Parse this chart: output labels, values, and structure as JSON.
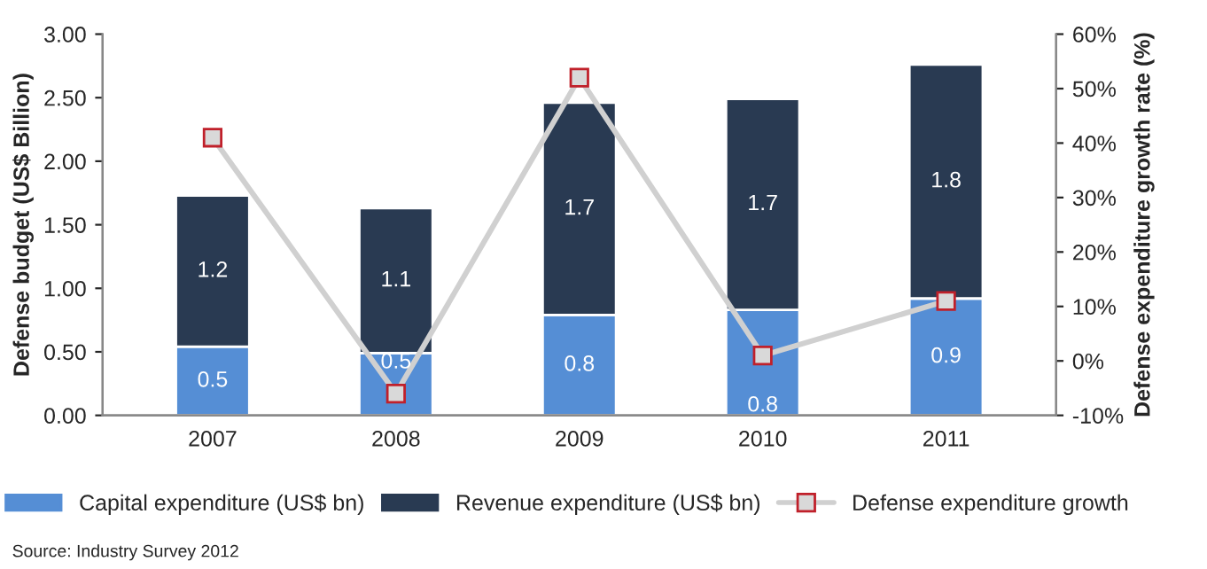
{
  "chart_data": {
    "type": "bar",
    "stacked": true,
    "categories": [
      "2007",
      "2008",
      "2009",
      "2010",
      "2011"
    ],
    "ylabel": "Defense budget (US$ Billion)",
    "y2label": "Defense expenditure growth rate (%)",
    "ylim": [
      0,
      3
    ],
    "yticks": [
      {
        "value": 0,
        "label": "0.00"
      },
      {
        "value": 0.5,
        "label": "0.50"
      },
      {
        "value": 1,
        "label": "1.00"
      },
      {
        "value": 1.5,
        "label": "1.50"
      },
      {
        "value": 2,
        "label": "2.00"
      },
      {
        "value": 2.5,
        "label": "2.50"
      },
      {
        "value": 3,
        "label": "3.00"
      }
    ],
    "y2lim": [
      -10,
      60
    ],
    "y2ticks": [
      {
        "value": -10,
        "label": "-10%"
      },
      {
        "value": 0,
        "label": "0%"
      },
      {
        "value": 10,
        "label": "10%"
      },
      {
        "value": 20,
        "label": "20%"
      },
      {
        "value": 30,
        "label": "30%"
      },
      {
        "value": 40,
        "label": "40%"
      },
      {
        "value": 50,
        "label": "50%"
      },
      {
        "value": 60,
        "label": "60%"
      }
    ],
    "series": [
      {
        "name": "Capital expenditure (US$ bn)",
        "color": "#558ed5",
        "values": [
          0.54,
          0.49,
          0.79,
          0.83,
          0.92
        ],
        "value_labels": [
          "0.5",
          "0.5",
          "0.8",
          "0.8",
          "0.9"
        ]
      },
      {
        "name": "Revenue expenditure (US$ bn)",
        "color": "#293a52",
        "values": [
          1.19,
          1.14,
          1.67,
          1.66,
          1.84
        ],
        "value_labels": [
          "1.2",
          "1.1",
          "1.7",
          "1.7",
          "1.8"
        ]
      },
      {
        "name": "Defense expenditure growth",
        "type": "line",
        "axis": "y2",
        "color": "#d0d0d0",
        "marker": "square",
        "values": [
          41,
          -6,
          52,
          1,
          11
        ]
      }
    ],
    "grid": false,
    "legend": "bottom",
    "annotations": [
      "Source: Industry Survey 2012"
    ]
  }
}
